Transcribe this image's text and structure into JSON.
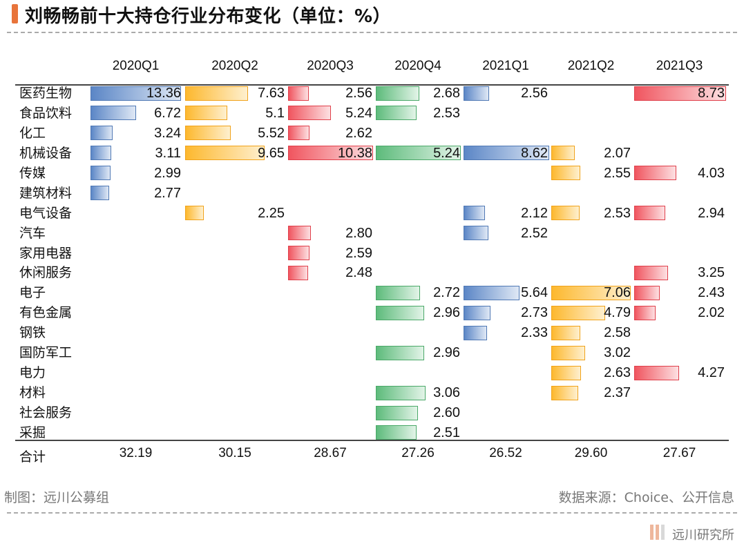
{
  "title": "刘畅畅前十大持仓行业分布变化（单位：%）",
  "footer": {
    "left": "制图：远川公募组",
    "right": "数据来源：Choice、公开信息",
    "logo": "远川研究所"
  },
  "chart_data": {
    "type": "table",
    "title": "刘畅畅前十大持仓行业分布变化（单位：%）",
    "columns": [
      "2020Q1",
      "2020Q2",
      "2020Q3",
      "2020Q4",
      "2021Q1",
      "2021Q2",
      "2021Q3"
    ],
    "column_colors": [
      "#5b86c6",
      "#fdb82e",
      "#f0555f",
      "#5dbb7b",
      "#5b86c6",
      "#fdb82e",
      "#f0555f"
    ],
    "rows": [
      {
        "label": "医药生物",
        "values": [
          "13.36",
          "7.63",
          "2.56",
          "2.68",
          "2.56",
          null,
          "8.73"
        ]
      },
      {
        "label": "食品饮料",
        "values": [
          "6.72",
          "5.1",
          "5.24",
          "2.53",
          null,
          null,
          null
        ]
      },
      {
        "label": "化工",
        "values": [
          "3.24",
          "5.52",
          "2.62",
          null,
          null,
          null,
          null
        ]
      },
      {
        "label": "机械设备",
        "values": [
          "3.11",
          "9.65",
          "10.38",
          "5.24",
          "8.62",
          "2.07",
          null
        ]
      },
      {
        "label": "传媒",
        "values": [
          "2.99",
          null,
          null,
          null,
          null,
          "2.55",
          "4.03"
        ]
      },
      {
        "label": "建筑材料",
        "values": [
          "2.77",
          null,
          null,
          null,
          null,
          null,
          null
        ]
      },
      {
        "label": "电气设备",
        "values": [
          null,
          "2.25",
          null,
          null,
          "2.12",
          "2.53",
          "2.94"
        ]
      },
      {
        "label": "汽车",
        "values": [
          null,
          null,
          "2.80",
          null,
          "2.52",
          null,
          null
        ]
      },
      {
        "label": "家用电器",
        "values": [
          null,
          null,
          "2.59",
          null,
          null,
          null,
          null
        ]
      },
      {
        "label": "休闲服务",
        "values": [
          null,
          null,
          "2.48",
          null,
          null,
          null,
          "3.25"
        ]
      },
      {
        "label": "电子",
        "values": [
          null,
          null,
          null,
          "2.72",
          "5.64",
          "7.06",
          "2.43"
        ]
      },
      {
        "label": "有色金属",
        "values": [
          null,
          null,
          null,
          "2.96",
          "2.73",
          "4.79",
          "2.02"
        ]
      },
      {
        "label": "钢铁",
        "values": [
          null,
          null,
          null,
          null,
          "2.33",
          "2.58",
          null
        ]
      },
      {
        "label": "国防军工",
        "values": [
          null,
          null,
          null,
          "2.96",
          null,
          "3.02",
          null
        ]
      },
      {
        "label": "电力",
        "values": [
          null,
          null,
          null,
          null,
          null,
          "2.63",
          "4.27"
        ]
      },
      {
        "label": "材料",
        "values": [
          null,
          null,
          null,
          "3.06",
          null,
          "2.37",
          null
        ]
      },
      {
        "label": "社会服务",
        "values": [
          null,
          null,
          null,
          "2.60",
          null,
          null,
          null
        ]
      },
      {
        "label": "采掘",
        "values": [
          null,
          null,
          null,
          "2.51",
          null,
          null,
          null
        ]
      }
    ],
    "total_label": "合计",
    "totals": [
      "32.19",
      "30.15",
      "28.67",
      "27.26",
      "26.52",
      "29.60",
      "27.67"
    ]
  }
}
